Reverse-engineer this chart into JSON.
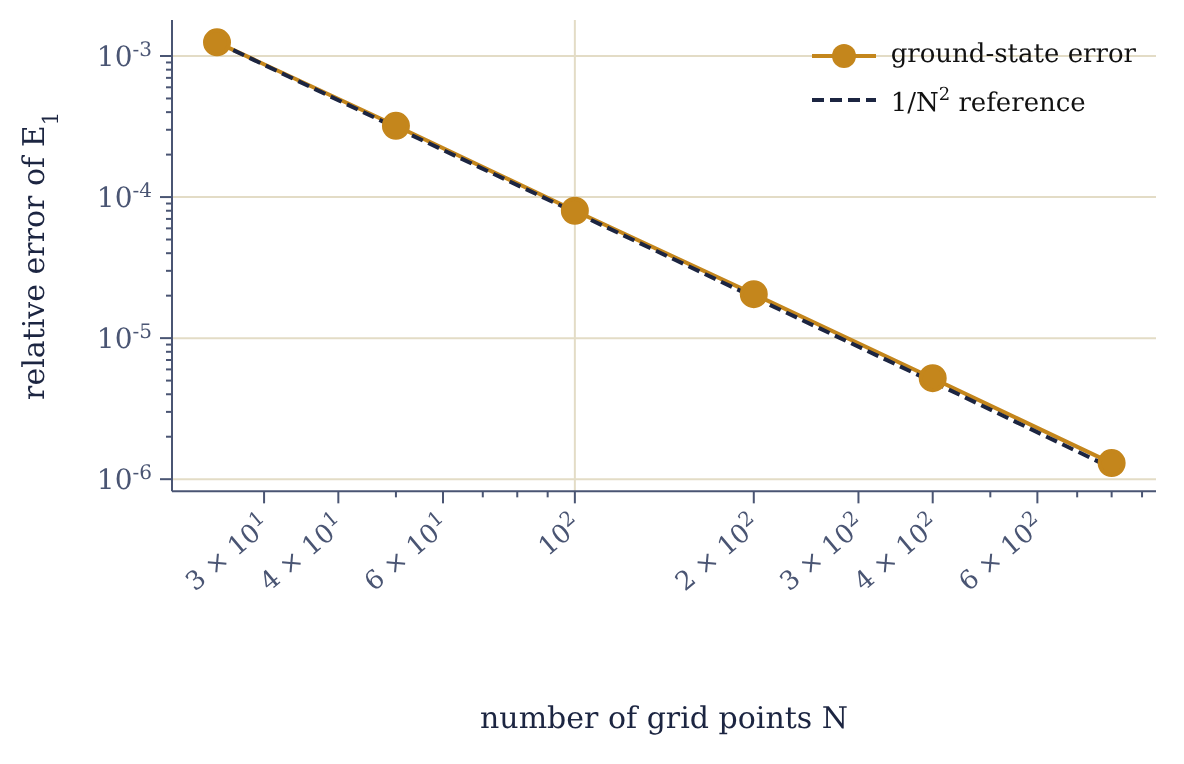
{
  "chart_data": {
    "type": "line",
    "xlabel": "number of grid points N",
    "ylabel": "relative error of E$_{1}$",
    "x": [
      25,
      50,
      100,
      200,
      400,
      800
    ],
    "series": [
      {
        "name": "ground-state error",
        "color": "#c4861c",
        "values": [
          0.00125,
          0.00032,
          8e-05,
          2.05e-05,
          5.2e-06,
          1.3e-06
        ],
        "marker": "circle",
        "line_style": "solid"
      },
      {
        "name": "1/N$^{2}$ reference",
        "color": "#1c2541",
        "values": [
          0.00125,
          0.00031,
          7.8e-05,
          1.95e-05,
          4.9e-06,
          1.2e-06
        ],
        "marker": "none",
        "line_style": "dashed"
      }
    ],
    "log": "xy",
    "xlim": [
      21,
      950
    ],
    "ylim": [
      8.2e-07,
      0.0018
    ],
    "xticks": [
      {
        "value": 30,
        "label": "3 × 10$^{1}$"
      },
      {
        "value": 40,
        "label": "4 × 10$^{1}$"
      },
      {
        "value": 50,
        "label": null
      },
      {
        "value": 60,
        "label": "6 × 10$^{1}$"
      },
      {
        "value": 70,
        "label": null
      },
      {
        "value": 80,
        "label": null
      },
      {
        "value": 90,
        "label": null
      },
      {
        "value": 100,
        "label": "10$^{2}$"
      },
      {
        "value": 200,
        "label": "2 × 10$^{2}$"
      },
      {
        "value": 300,
        "label": "3 × 10$^{2}$"
      },
      {
        "value": 400,
        "label": "4 × 10$^{2}$"
      },
      {
        "value": 500,
        "label": null
      },
      {
        "value": 600,
        "label": "6 × 10$^{2}$"
      },
      {
        "value": 700,
        "label": null
      },
      {
        "value": 800,
        "label": null
      },
      {
        "value": 900,
        "label": null
      }
    ],
    "yticks": [
      {
        "value": 1e-06,
        "label": "10$^{-6}$"
      },
      {
        "value": 2e-06,
        "label": null
      },
      {
        "value": 3e-06,
        "label": null
      },
      {
        "value": 4e-06,
        "label": null
      },
      {
        "value": 5e-06,
        "label": null
      },
      {
        "value": 6e-06,
        "label": null
      },
      {
        "value": 7e-06,
        "label": null
      },
      {
        "value": 8e-06,
        "label": null
      },
      {
        "value": 9e-06,
        "label": null
      },
      {
        "value": 1e-05,
        "label": "10$^{-5}$"
      },
      {
        "value": 2e-05,
        "label": null
      },
      {
        "value": 3e-05,
        "label": null
      },
      {
        "value": 4e-05,
        "label": null
      },
      {
        "value": 5e-05,
        "label": null
      },
      {
        "value": 6e-05,
        "label": null
      },
      {
        "value": 7e-05,
        "label": null
      },
      {
        "value": 8e-05,
        "label": null
      },
      {
        "value": 9e-05,
        "label": null
      },
      {
        "value": 0.0001,
        "label": "10$^{-4}$"
      },
      {
        "value": 0.0002,
        "label": null
      },
      {
        "value": 0.0003,
        "label": null
      },
      {
        "value": 0.0004,
        "label": null
      },
      {
        "value": 0.0005,
        "label": null
      },
      {
        "value": 0.0006,
        "label": null
      },
      {
        "value": 0.0007,
        "label": null
      },
      {
        "value": 0.0008,
        "label": null
      },
      {
        "value": 0.0009,
        "label": null
      },
      {
        "value": 0.001,
        "label": "10$^{-3}$"
      }
    ],
    "grid": true,
    "legend": "top right"
  }
}
